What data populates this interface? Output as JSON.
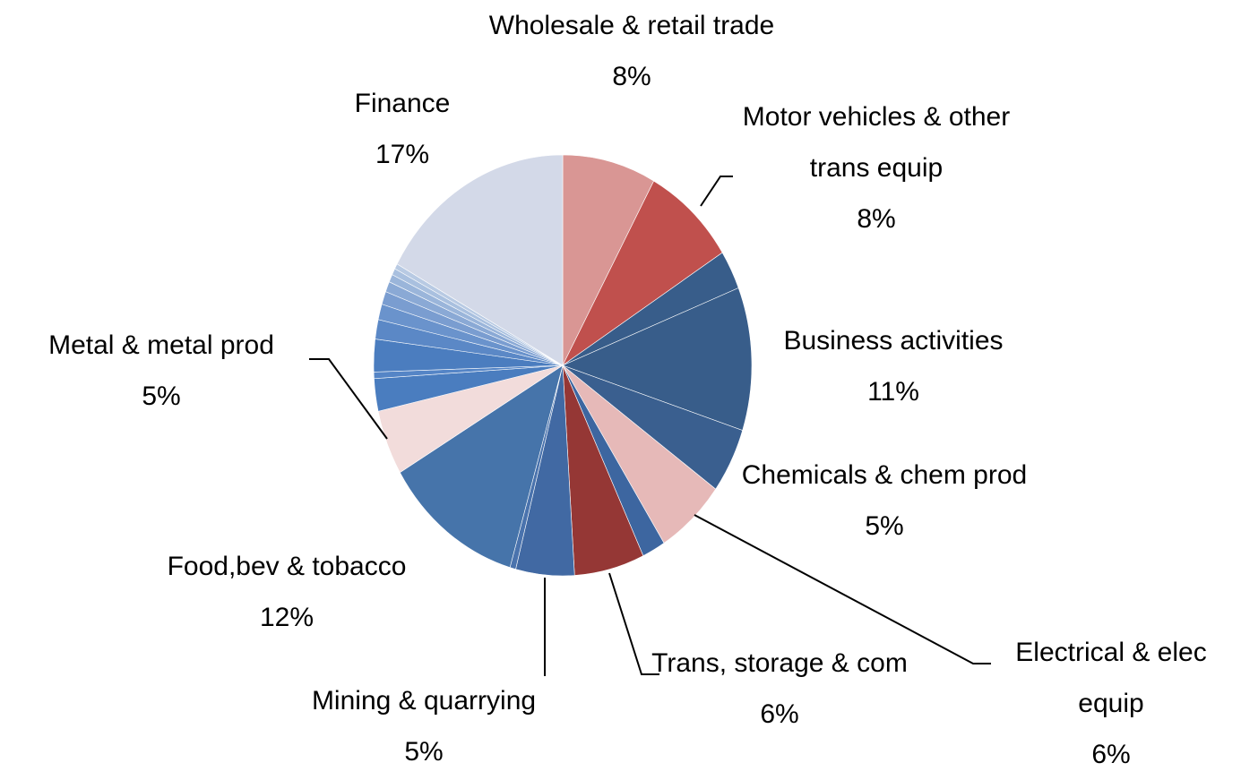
{
  "chart_data": {
    "type": "pie",
    "categories": [
      "Wholesale & retail trade",
      "Motor vehicles & other trans equip",
      null,
      "Business activities",
      "Chemicals & chem prod",
      "Electrical & elec equip",
      null,
      "Trans, storage & com",
      "Mining & quarrying",
      null,
      "Food,bev & tobacco",
      "Metal & metal prod",
      null,
      null,
      null,
      null,
      null,
      null,
      null,
      null,
      null,
      null,
      "Finance"
    ],
    "values": [
      8,
      8,
      3,
      11,
      5,
      6,
      2,
      6,
      5,
      0.5,
      12,
      5,
      2.5,
      0.5,
      2.5,
      1.5,
      1.2,
      1,
      0.8,
      0.6,
      0.5,
      0.4,
      17
    ],
    "value_labels": [
      "8%",
      "8%",
      null,
      "11%",
      "5%",
      "6%",
      null,
      "6%",
      "5%",
      null,
      "12%",
      "5%",
      null,
      null,
      null,
      null,
      null,
      null,
      null,
      null,
      null,
      null,
      "17%"
    ],
    "colors": [
      "#d99694",
      "#c0504d",
      "#385d8a",
      "#385d8a",
      "#3a5f8f",
      "#e6b9b8",
      "#3d66a0",
      "#953735",
      "#4169a3",
      "#4a73ad",
      "#4674aa",
      "#f2dcdb",
      "#4a7dbf",
      "#5585c6",
      "#4b7dbf",
      "#5b88c6",
      "#6a93cc",
      "#7a9dd0",
      "#8aa9d5",
      "#9ab5da",
      "#a9c0df",
      "#b8cae3",
      "#d3d9e8"
    ]
  }
}
